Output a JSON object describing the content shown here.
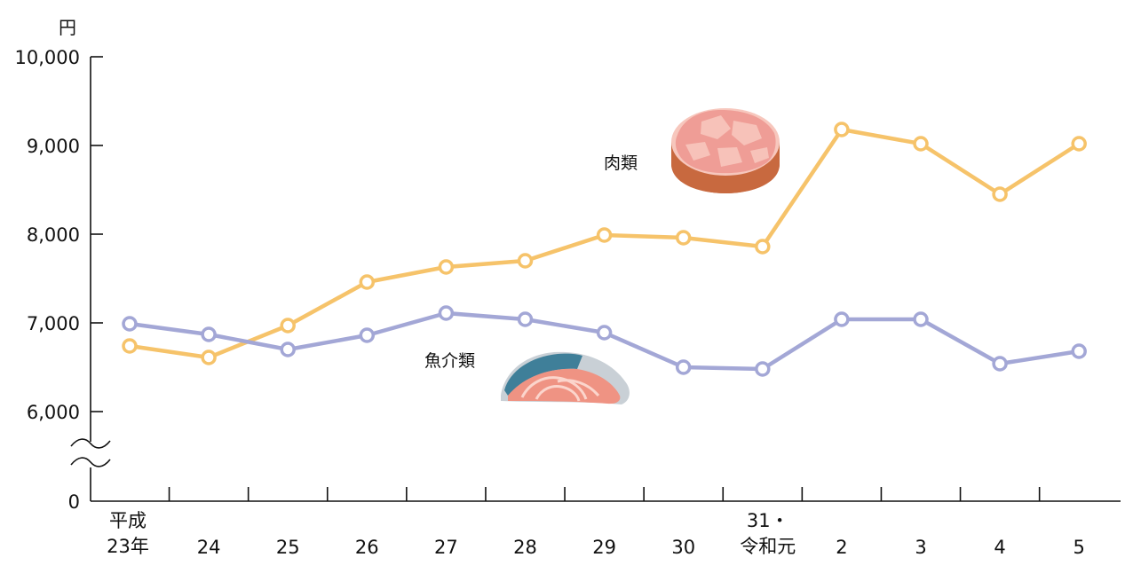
{
  "chart_data": {
    "type": "line",
    "ylabel": "円",
    "y_ticks": [
      "10,000",
      "9,000",
      "8,000",
      "7,000",
      "6,000",
      "0"
    ],
    "y_range": [
      6000,
      10000
    ],
    "y_axis_break": true,
    "categories": [
      [
        "平成",
        "23年"
      ],
      [
        "24"
      ],
      [
        "25"
      ],
      [
        "26"
      ],
      [
        "27"
      ],
      [
        "28"
      ],
      [
        "29"
      ],
      [
        "30"
      ],
      [
        "31・",
        "令和元"
      ],
      [
        "2"
      ],
      [
        "3"
      ],
      [
        "4"
      ],
      [
        "5"
      ]
    ],
    "series": [
      {
        "name": "肉類",
        "color": "#f6c36a",
        "values": [
          6740,
          6610,
          6970,
          7460,
          7630,
          7700,
          7990,
          7960,
          7860,
          9180,
          9020,
          8450,
          9020
        ]
      },
      {
        "name": "魚介類",
        "color": "#a3a7d6",
        "values": [
          6990,
          6870,
          6700,
          6860,
          7110,
          7040,
          6890,
          6500,
          6480,
          7040,
          7040,
          6540,
          6680
        ]
      }
    ],
    "illustrations": [
      "meat-illustration",
      "fish-illustration"
    ]
  }
}
